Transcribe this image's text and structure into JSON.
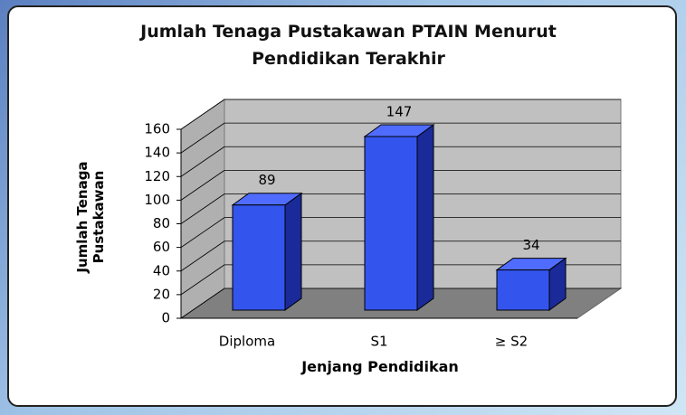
{
  "chart_data": {
    "type": "bar3d",
    "title": "Jumlah Tenaga Pustakawan PTAIN Menurut Pendidikan Terakhir",
    "x_label": "Jenjang Pendidikan",
    "y_label": "Jumlah Tenaga Pustakawan",
    "categories": [
      "Diploma",
      "S1",
      "≥ S2"
    ],
    "values": [
      89,
      147,
      34
    ],
    "color": "#3355ee",
    "ylim": [
      0,
      160
    ],
    "yticks": [
      0,
      20,
      40,
      60,
      80,
      100,
      120,
      140,
      160
    ],
    "grid": true
  }
}
